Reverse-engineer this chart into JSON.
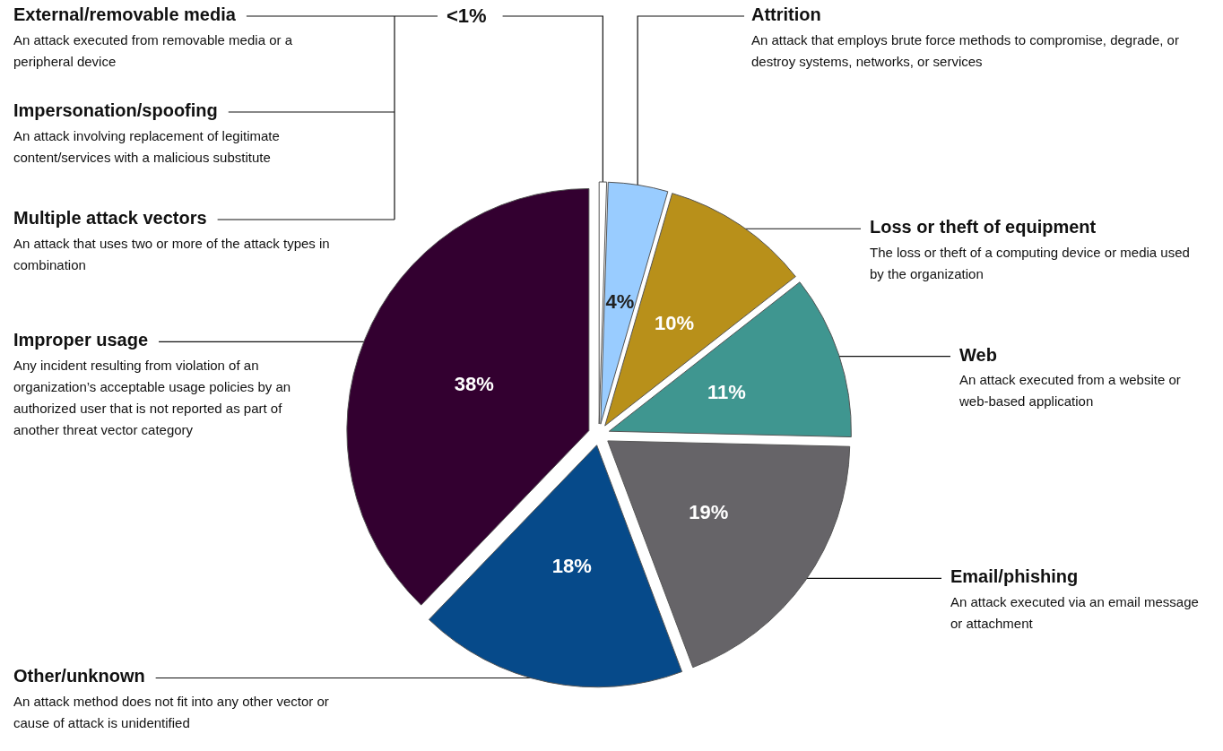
{
  "chart_data": {
    "type": "pie",
    "categories": [
      null,
      "Attrition",
      "Loss or theft of equipment",
      "Web",
      "Email/phishing",
      "Other/unknown",
      "Improper usage"
    ],
    "values": [
      0.5,
      4,
      10,
      11,
      19,
      18,
      38
    ],
    "value_labels": [
      "<1%",
      "4%",
      "10%",
      "11%",
      "19%",
      "18%",
      "38%"
    ],
    "colors": [
      "#ffffff",
      "#99ccff",
      "#b8901a",
      "#3f9690",
      "#666468",
      "#064a8a",
      "#330030"
    ],
    "annotations": [
      "External/removable media",
      "An attack executed from removable media or a peripheral device",
      "Impersonation/spoofing",
      "An attack involving replacement of legitimate content/services with a malicious substitute",
      "Multiple attack vectors",
      "An attack that uses two or more of the attack types in combination",
      "An attack that employs brute force methods to compromise, degrade, or destroy systems, networks, or services",
      "The loss or theft of a computing device or media used by the organization",
      "An attack executed from a website or web-based application",
      "An attack executed via an email message or attachment",
      "An attack method does not fit into any other vector or cause of attack is unidentified",
      "Any incident resulting from violation of an organization’s acceptable usage policies by an authorized user that is not reported as part of another threat vector category"
    ],
    "legend": false
  }
}
